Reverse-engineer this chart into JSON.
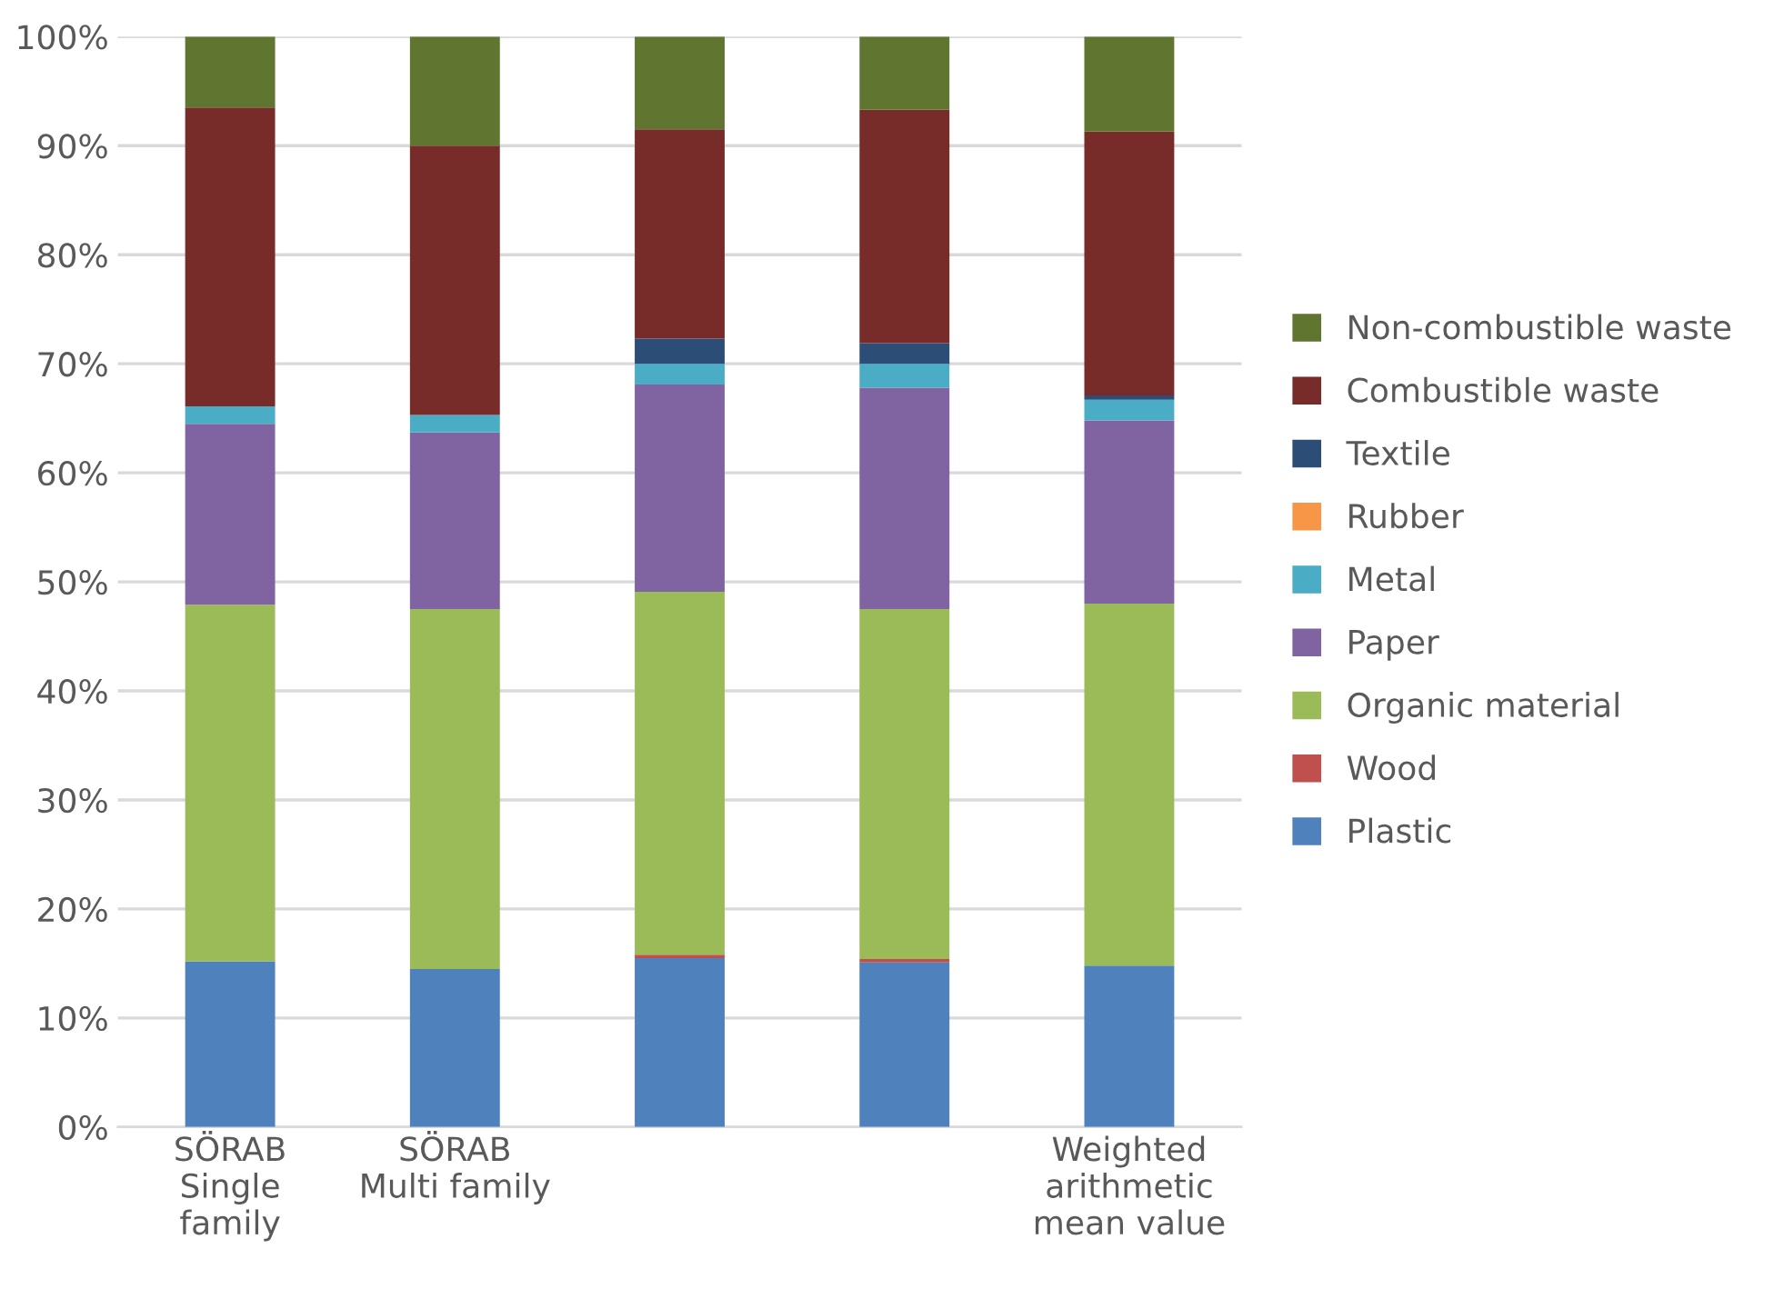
{
  "chart_data": {
    "type": "bar",
    "stacked": true,
    "categories": [
      "SÖRAB\nSingle\nfamily",
      "SÖRAB\nMulti family",
      null,
      null,
      "Weighted\narithmetic\nmean value"
    ],
    "series": [
      {
        "name": "Plastic",
        "color": "#4f81bd",
        "values": [
          15.2,
          14.5,
          15.5,
          15.1,
          14.8
        ]
      },
      {
        "name": "Wood",
        "color": "#c0504d",
        "values": [
          0,
          0,
          0.3,
          0.3,
          0
        ]
      },
      {
        "name": "Organic material",
        "color": "#9bbb59",
        "values": [
          32.7,
          33.0,
          33.3,
          32.1,
          33.2
        ]
      },
      {
        "name": "Paper",
        "color": "#8064a2",
        "values": [
          16.6,
          16.2,
          19.0,
          20.3,
          16.8
        ]
      },
      {
        "name": "Metal",
        "color": "#4bacc6",
        "values": [
          1.6,
          1.6,
          1.9,
          2.2,
          1.9
        ]
      },
      {
        "name": "Rubber",
        "color": "#f79646",
        "values": [
          0,
          0,
          0,
          0,
          0
        ]
      },
      {
        "name": "Textile",
        "color": "#2c4d75",
        "values": [
          0,
          0,
          2.3,
          1.9,
          0.4
        ]
      },
      {
        "name": "Combustible waste",
        "color": "#772c2a",
        "values": [
          27.4,
          24.7,
          19.2,
          21.4,
          24.2
        ]
      },
      {
        "name": "Non-combustible waste",
        "color": "#5f7530",
        "values": [
          6.5,
          10.0,
          8.5,
          6.7,
          8.7
        ]
      }
    ],
    "ylim": [
      0,
      100
    ],
    "yticks": [
      {
        "value": 0,
        "label": "0%"
      },
      {
        "value": 10,
        "label": "10%"
      },
      {
        "value": 20,
        "label": "20%"
      },
      {
        "value": 30,
        "label": "30%"
      },
      {
        "value": 40,
        "label": "40%"
      },
      {
        "value": 50,
        "label": "50%"
      },
      {
        "value": 60,
        "label": "60%"
      },
      {
        "value": 70,
        "label": "70%"
      },
      {
        "value": 80,
        "label": "80%"
      },
      {
        "value": 90,
        "label": "90%"
      },
      {
        "value": 100,
        "label": "100%"
      }
    ],
    "grid": "y",
    "legend": "right"
  }
}
